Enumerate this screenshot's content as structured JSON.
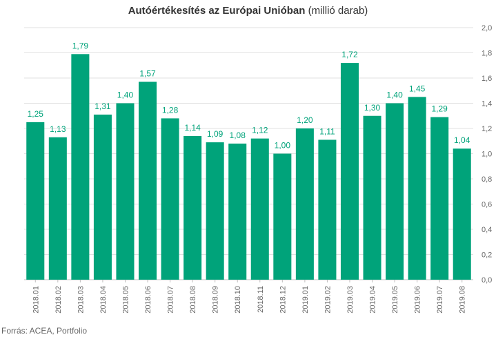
{
  "chart_data": {
    "type": "bar",
    "title": "Autóértékesítés az Európai Unióban",
    "subtitle": "(millió darab)",
    "categories": [
      "2018.01",
      "2018.02",
      "2018.03",
      "2018.04",
      "2018.05",
      "2018.06",
      "2018.07",
      "2018.08",
      "2018.09",
      "2018.10",
      "2018.11",
      "2018.12",
      "2019.01",
      "2019.02",
      "2019.03",
      "2019.04",
      "2019.05",
      "2019.06",
      "2019.07",
      "2019.08"
    ],
    "values": [
      1.25,
      1.13,
      1.79,
      1.31,
      1.4,
      1.57,
      1.28,
      1.14,
      1.09,
      1.08,
      1.12,
      1.0,
      1.2,
      1.11,
      1.72,
      1.3,
      1.4,
      1.45,
      1.29,
      1.04
    ],
    "value_labels": [
      "1,25",
      "1,13",
      "1,79",
      "1,31",
      "1,40",
      "1,57",
      "1,28",
      "1,14",
      "1,09",
      "1,08",
      "1,12",
      "1,00",
      "1,20",
      "1,11",
      "1,72",
      "1,30",
      "1,40",
      "1,45",
      "1,29",
      "1,04"
    ],
    "ylim": [
      0,
      2.0
    ],
    "yticks": [
      "0,0",
      "0,2",
      "0,4",
      "0,6",
      "0,8",
      "1,0",
      "1,2",
      "1,4",
      "1,6",
      "1,8",
      "2,0"
    ],
    "y_axis_side": "right",
    "grid": true,
    "xlabel": "",
    "ylabel": "",
    "bar_color": "#00a37a",
    "label_color": "#00a37a",
    "grid_color": "#e0e0e0",
    "source": "Forrás: ACEA, Portfolio"
  }
}
